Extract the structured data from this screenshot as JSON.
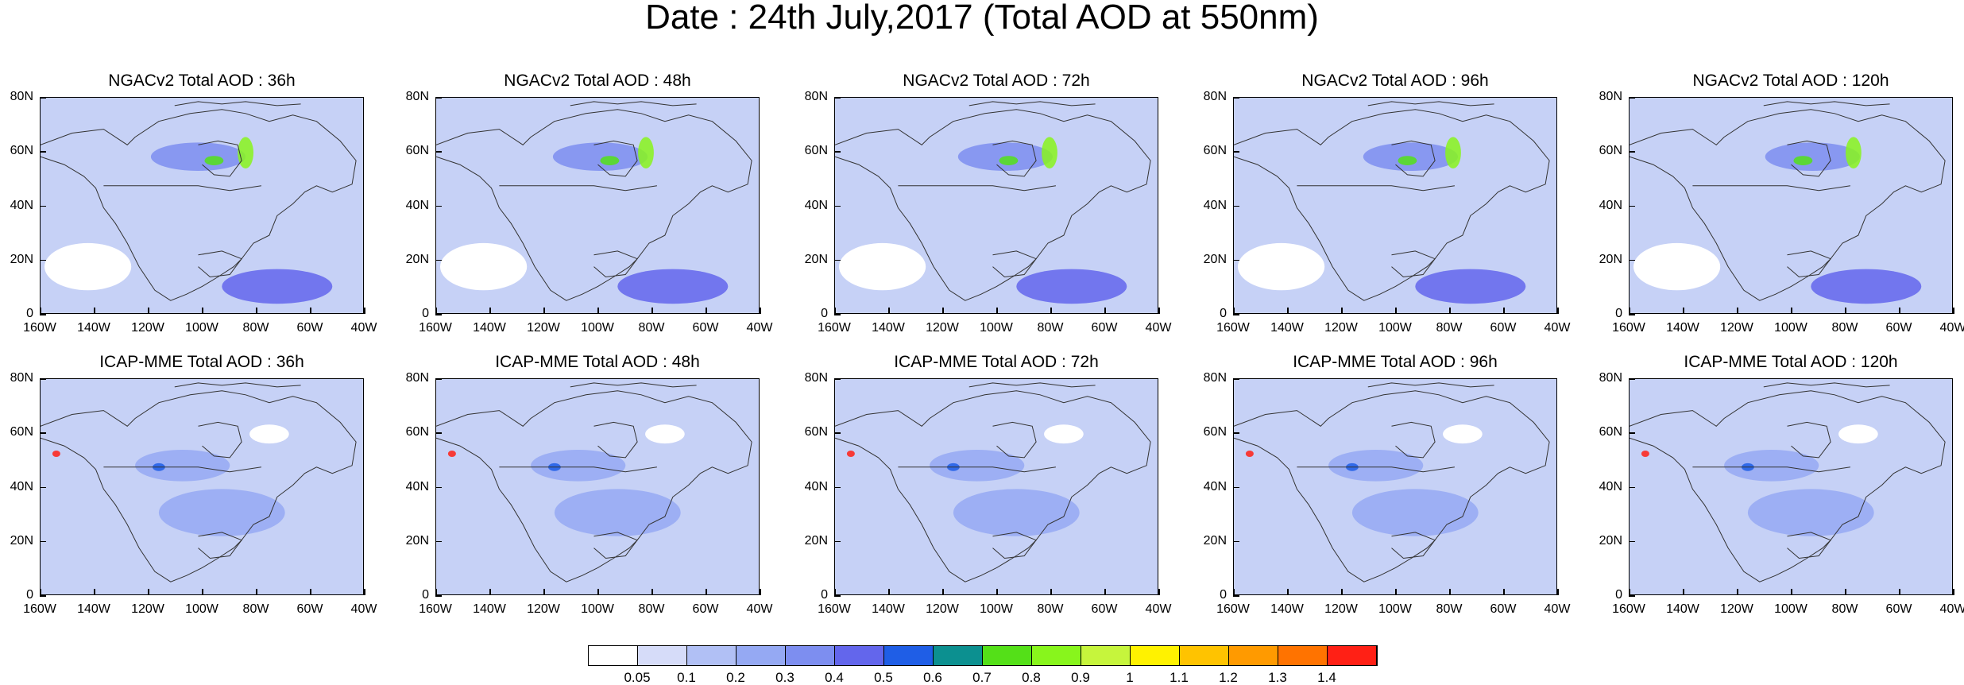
{
  "title": "Date : 24th July,2017 (Total AOD at 550nm)",
  "lat_ticks": [
    "80N",
    "60N",
    "40N",
    "20N",
    "0"
  ],
  "lon_ticks": [
    "160W",
    "140W",
    "120W",
    "100W",
    "80W",
    "60W",
    "40W"
  ],
  "panels": [
    {
      "title": "NGACv2 Total AOD : 36h"
    },
    {
      "title": "NGACv2 Total AOD : 48h"
    },
    {
      "title": "NGACv2 Total AOD : 72h"
    },
    {
      "title": "NGACv2 Total AOD : 96h"
    },
    {
      "title": "NGACv2 Total AOD : 120h"
    },
    {
      "title": "ICAP-MME Total AOD : 36h"
    },
    {
      "title": "ICAP-MME Total AOD : 48h"
    },
    {
      "title": "ICAP-MME Total AOD : 72h"
    },
    {
      "title": "ICAP-MME Total AOD : 96h"
    },
    {
      "title": "ICAP-MME Total AOD : 120h"
    }
  ],
  "colorbar": {
    "labels": [
      "0.05",
      "0.1",
      "0.2",
      "0.3",
      "0.4",
      "0.5",
      "0.6",
      "0.7",
      "0.8",
      "0.9",
      "1",
      "1.1",
      "1.2",
      "1.3",
      "1.4"
    ],
    "colors": [
      "#ffffff",
      "#d6dcf9",
      "#b1c0f5",
      "#95a9f3",
      "#7d8ef0",
      "#6366ec",
      "#1f5ee6",
      "#0c9090",
      "#54e018",
      "#88f51c",
      "#c6f53c",
      "#fff200",
      "#ffc300",
      "#ff9a00",
      "#ff7300",
      "#ff2015"
    ]
  }
}
